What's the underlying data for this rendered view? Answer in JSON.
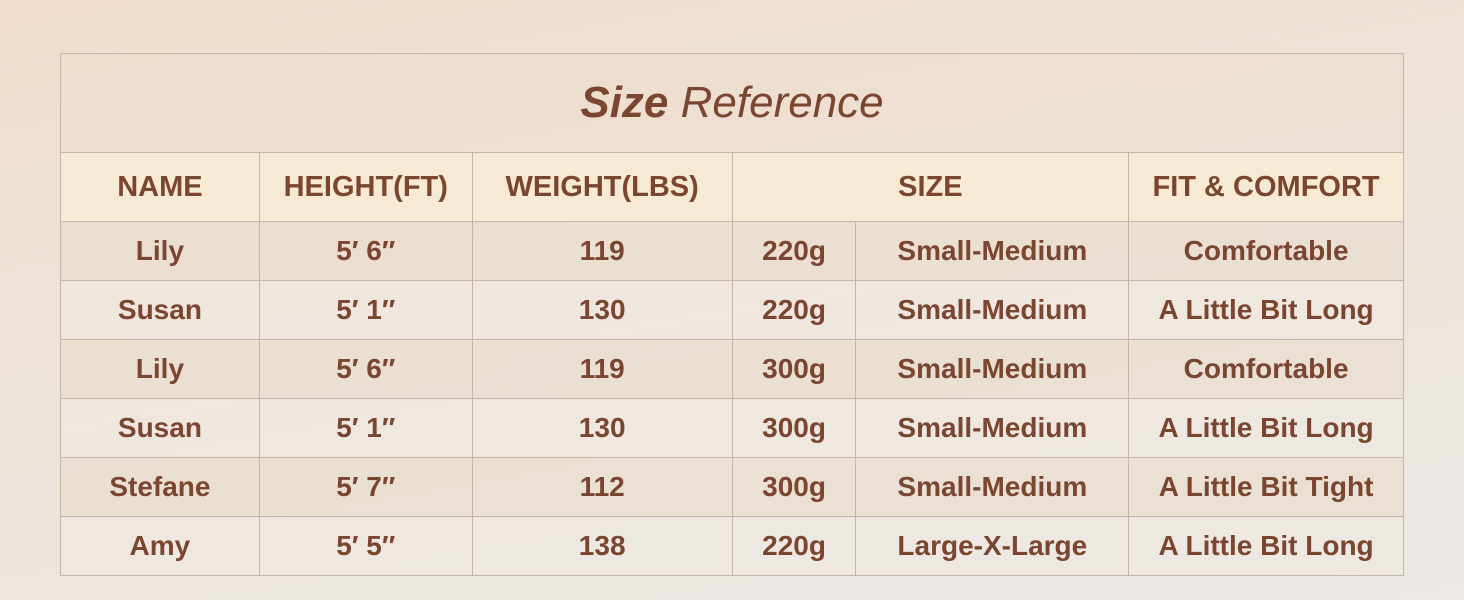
{
  "title": {
    "bold": "Size",
    "rest": "Reference"
  },
  "headers": [
    "NAME",
    "HEIGHT(FT)",
    "WEIGHT(LBS)",
    "SIZE",
    "FIT & COMFORT"
  ],
  "rows": [
    {
      "name": "Lily",
      "height": "5′ 6″",
      "weight": "119",
      "fabric": "220g",
      "size": "Small-Medium",
      "fit": "Comfortable"
    },
    {
      "name": "Susan",
      "height": "5′ 1″",
      "weight": "130",
      "fabric": "220g",
      "size": "Small-Medium",
      "fit": "A Little Bit Long"
    },
    {
      "name": "Lily",
      "height": "5′ 6″",
      "weight": "119",
      "fabric": "300g",
      "size": "Small-Medium",
      "fit": "Comfortable"
    },
    {
      "name": "Susan",
      "height": "5′ 1″",
      "weight": "130",
      "fabric": "300g",
      "size": "Small-Medium",
      "fit": "A Little Bit Long"
    },
    {
      "name": "Stefane",
      "height": "5′ 7″",
      "weight": "112",
      "fabric": "300g",
      "size": "Small-Medium",
      "fit": "A Little Bit Tight"
    },
    {
      "name": "Amy",
      "height": "5′ 5″",
      "weight": "138",
      "fabric": "220g",
      "size": "Large-X-Large",
      "fit": "A Little Bit Long"
    }
  ]
}
